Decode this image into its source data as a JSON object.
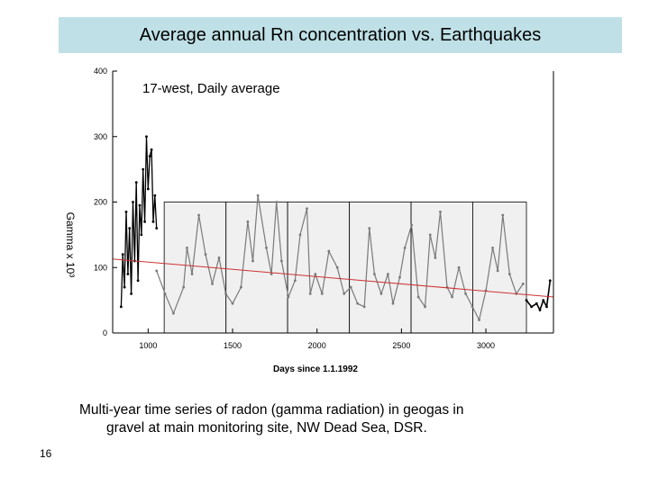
{
  "slide": {
    "title": "Average annual Rn concentration vs. Earthquakes",
    "caption_line1": "Multi-year time series of radon (gamma radiation) in geogas in",
    "caption_line2": "gravel at main monitoring site, NW Dead Sea, DSR.",
    "slide_number": "16"
  },
  "chart_data": {
    "type": "line",
    "title": "17-west, Daily average",
    "xlabel": "Days since 1.1.1992",
    "ylabel": "Gamma x 10³",
    "xlim": [
      790,
      3400
    ],
    "ylim": [
      0,
      400
    ],
    "x_ticks": [
      1000,
      1500,
      2000,
      2500,
      3000
    ],
    "y_ticks": [
      0,
      100,
      200,
      300,
      400
    ],
    "background": "#ffffff",
    "colors": {
      "measured": "#7a7a7a",
      "early": "#000000",
      "trend": "#cc3333",
      "years": "#f0f0f0"
    },
    "year_bands": [
      [
        1095,
        1461
      ],
      [
        1461,
        1826
      ],
      [
        1826,
        2192
      ],
      [
        2192,
        2557
      ],
      [
        2557,
        2922
      ],
      [
        2922,
        3240
      ]
    ],
    "series": [
      {
        "role": "early",
        "x": [
          840,
          850,
          860,
          870,
          880,
          890,
          900,
          910,
          920,
          930,
          940,
          950,
          960,
          970,
          980,
          990,
          1000,
          1010,
          1020,
          1030,
          1040,
          1050
        ],
        "y": [
          40,
          120,
          70,
          185,
          90,
          160,
          60,
          200,
          110,
          230,
          80,
          195,
          150,
          250,
          170,
          300,
          220,
          270,
          280,
          170,
          210,
          160
        ]
      },
      {
        "role": "measured",
        "x": [
          1050,
          1100,
          1150,
          1210,
          1230,
          1260,
          1300,
          1340,
          1380,
          1420,
          1460,
          1500,
          1550,
          1590,
          1620,
          1650,
          1700,
          1730,
          1760,
          1790,
          1830,
          1870,
          1900,
          1940,
          1960,
          1990,
          2030,
          2070,
          2120,
          2160,
          2200,
          2240,
          2280,
          2310,
          2340,
          2380,
          2420,
          2450,
          2490,
          2520,
          2560,
          2600,
          2640,
          2670,
          2700,
          2730,
          2770,
          2800,
          2840,
          2880,
          2920,
          2960,
          3000,
          3040,
          3070,
          3100,
          3140,
          3180,
          3220
        ],
        "y": [
          95,
          60,
          30,
          70,
          130,
          90,
          180,
          120,
          75,
          115,
          60,
          45,
          70,
          170,
          110,
          210,
          130,
          90,
          200,
          110,
          55,
          80,
          150,
          190,
          60,
          90,
          60,
          125,
          100,
          60,
          70,
          45,
          40,
          160,
          90,
          60,
          90,
          45,
          85,
          130,
          165,
          55,
          40,
          150,
          115,
          185,
          70,
          55,
          100,
          60,
          40,
          20,
          65,
          130,
          95,
          180,
          90,
          60,
          75
        ]
      },
      {
        "role": "late",
        "x": [
          3240,
          3270,
          3300,
          3320,
          3340,
          3360,
          3380
        ],
        "y": [
          50,
          40,
          45,
          35,
          50,
          40,
          80
        ]
      },
      {
        "role": "trend",
        "x": [
          790,
          3400
        ],
        "y": [
          113,
          55
        ]
      }
    ]
  }
}
